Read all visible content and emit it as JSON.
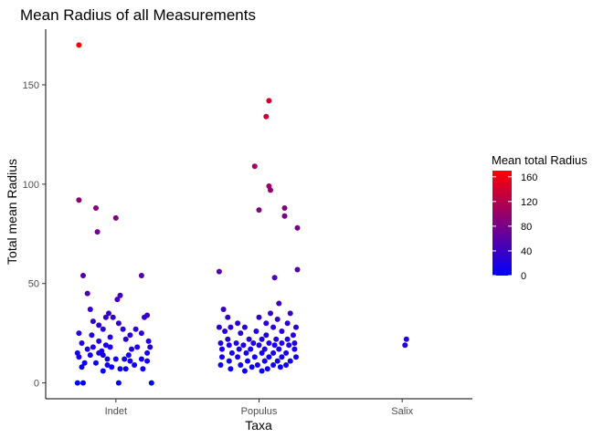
{
  "chart_data": {
    "type": "scatter",
    "title": "Mean Radius of all Measurements",
    "xlabel": "Taxa",
    "ylabel": "Total mean Radius",
    "categories": [
      "Indet",
      "Populus",
      "Salix"
    ],
    "ylim": [
      -8,
      178
    ],
    "yticks": [
      0,
      50,
      100,
      150
    ],
    "grid": false,
    "legend": {
      "title": "Mean total Radius",
      "placement": "right",
      "ticks": [
        0,
        40,
        80,
        120,
        160
      ],
      "range": [
        0,
        170
      ],
      "color_low": "#0000ff",
      "color_high": "#ff0000"
    },
    "points": [
      {
        "x": "Indet",
        "jitter": -0.26,
        "y": 170
      },
      {
        "x": "Indet",
        "jitter": -0.26,
        "y": 92
      },
      {
        "x": "Indet",
        "jitter": -0.14,
        "y": 88
      },
      {
        "x": "Indet",
        "jitter": 0.0,
        "y": 83
      },
      {
        "x": "Indet",
        "jitter": -0.13,
        "y": 76
      },
      {
        "x": "Indet",
        "jitter": -0.23,
        "y": 54
      },
      {
        "x": "Indet",
        "jitter": 0.18,
        "y": 54
      },
      {
        "x": "Indet",
        "jitter": -0.2,
        "y": 45
      },
      {
        "x": "Indet",
        "jitter": 0.03,
        "y": 44
      },
      {
        "x": "Indet",
        "jitter": 0.01,
        "y": 42
      },
      {
        "x": "Indet",
        "jitter": -0.18,
        "y": 37
      },
      {
        "x": "Indet",
        "jitter": -0.05,
        "y": 35
      },
      {
        "x": "Indet",
        "jitter": -0.07,
        "y": 33
      },
      {
        "x": "Indet",
        "jitter": -0.02,
        "y": 33
      },
      {
        "x": "Indet",
        "jitter": 0.22,
        "y": 34
      },
      {
        "x": "Indet",
        "jitter": 0.2,
        "y": 33
      },
      {
        "x": "Indet",
        "jitter": -0.16,
        "y": 31
      },
      {
        "x": "Indet",
        "jitter": -0.12,
        "y": 29
      },
      {
        "x": "Indet",
        "jitter": 0.02,
        "y": 30
      },
      {
        "x": "Indet",
        "jitter": -0.09,
        "y": 27
      },
      {
        "x": "Indet",
        "jitter": 0.05,
        "y": 27
      },
      {
        "x": "Indet",
        "jitter": 0.14,
        "y": 27
      },
      {
        "x": "Indet",
        "jitter": -0.26,
        "y": 25
      },
      {
        "x": "Indet",
        "jitter": -0.17,
        "y": 24
      },
      {
        "x": "Indet",
        "jitter": 0.1,
        "y": 24
      },
      {
        "x": "Indet",
        "jitter": -0.04,
        "y": 23
      },
      {
        "x": "Indet",
        "jitter": 0.18,
        "y": 25
      },
      {
        "x": "Indet",
        "jitter": -0.12,
        "y": 21
      },
      {
        "x": "Indet",
        "jitter": -0.24,
        "y": 20
      },
      {
        "x": "Indet",
        "jitter": 0.07,
        "y": 22
      },
      {
        "x": "Indet",
        "jitter": 0.23,
        "y": 21
      },
      {
        "x": "Indet",
        "jitter": -0.16,
        "y": 18
      },
      {
        "x": "Indet",
        "jitter": -0.07,
        "y": 19
      },
      {
        "x": "Indet",
        "jitter": -0.04,
        "y": 18
      },
      {
        "x": "Indet",
        "jitter": 0.15,
        "y": 18
      },
      {
        "x": "Indet",
        "jitter": 0.24,
        "y": 18
      },
      {
        "x": "Indet",
        "jitter": -0.2,
        "y": 17
      },
      {
        "x": "Indet",
        "jitter": 0.11,
        "y": 17
      },
      {
        "x": "Indet",
        "jitter": -0.27,
        "y": 15
      },
      {
        "x": "Indet",
        "jitter": -0.12,
        "y": 15
      },
      {
        "x": "Indet",
        "jitter": -0.09,
        "y": 14
      },
      {
        "x": "Indet",
        "jitter": 0.09,
        "y": 14
      },
      {
        "x": "Indet",
        "jitter": 0.22,
        "y": 15
      },
      {
        "x": "Indet",
        "jitter": -0.26,
        "y": 13
      },
      {
        "x": "Indet",
        "jitter": -0.06,
        "y": 12
      },
      {
        "x": "Indet",
        "jitter": 0.0,
        "y": 12
      },
      {
        "x": "Indet",
        "jitter": 0.06,
        "y": 12
      },
      {
        "x": "Indet",
        "jitter": 0.18,
        "y": 12
      },
      {
        "x": "Indet",
        "jitter": -0.22,
        "y": 10
      },
      {
        "x": "Indet",
        "jitter": -0.14,
        "y": 10
      },
      {
        "x": "Indet",
        "jitter": -0.06,
        "y": 9
      },
      {
        "x": "Indet",
        "jitter": 0.1,
        "y": 11
      },
      {
        "x": "Indet",
        "jitter": 0.22,
        "y": 11
      },
      {
        "x": "Indet",
        "jitter": -0.24,
        "y": 8
      },
      {
        "x": "Indet",
        "jitter": -0.03,
        "y": 8
      },
      {
        "x": "Indet",
        "jitter": 0.03,
        "y": 7
      },
      {
        "x": "Indet",
        "jitter": 0.07,
        "y": 7
      },
      {
        "x": "Indet",
        "jitter": 0.19,
        "y": 7
      },
      {
        "x": "Indet",
        "jitter": -0.09,
        "y": 6
      },
      {
        "x": "Indet",
        "jitter": -0.18,
        "y": 14
      },
      {
        "x": "Indet",
        "jitter": -0.1,
        "y": 16
      },
      {
        "x": "Indet",
        "jitter": 0.13,
        "y": 9
      },
      {
        "x": "Indet",
        "jitter": -0.27,
        "y": 0
      },
      {
        "x": "Indet",
        "jitter": -0.23,
        "y": 0
      },
      {
        "x": "Indet",
        "jitter": 0.02,
        "y": 0
      },
      {
        "x": "Indet",
        "jitter": 0.25,
        "y": 0
      },
      {
        "x": "Populus",
        "jitter": 0.07,
        "y": 142
      },
      {
        "x": "Populus",
        "jitter": 0.05,
        "y": 134
      },
      {
        "x": "Populus",
        "jitter": -0.03,
        "y": 109
      },
      {
        "x": "Populus",
        "jitter": 0.07,
        "y": 99
      },
      {
        "x": "Populus",
        "jitter": 0.08,
        "y": 97
      },
      {
        "x": "Populus",
        "jitter": 0.18,
        "y": 88
      },
      {
        "x": "Populus",
        "jitter": 0.0,
        "y": 87
      },
      {
        "x": "Populus",
        "jitter": 0.18,
        "y": 84
      },
      {
        "x": "Populus",
        "jitter": 0.27,
        "y": 78
      },
      {
        "x": "Populus",
        "jitter": -0.28,
        "y": 56
      },
      {
        "x": "Populus",
        "jitter": 0.27,
        "y": 57
      },
      {
        "x": "Populus",
        "jitter": 0.11,
        "y": 53
      },
      {
        "x": "Populus",
        "jitter": 0.14,
        "y": 40
      },
      {
        "x": "Populus",
        "jitter": -0.25,
        "y": 37
      },
      {
        "x": "Populus",
        "jitter": 0.08,
        "y": 35
      },
      {
        "x": "Populus",
        "jitter": 0.22,
        "y": 35
      },
      {
        "x": "Populus",
        "jitter": -0.22,
        "y": 33
      },
      {
        "x": "Populus",
        "jitter": 0.0,
        "y": 33
      },
      {
        "x": "Populus",
        "jitter": 0.13,
        "y": 32
      },
      {
        "x": "Populus",
        "jitter": -0.15,
        "y": 30
      },
      {
        "x": "Populus",
        "jitter": 0.05,
        "y": 30
      },
      {
        "x": "Populus",
        "jitter": 0.2,
        "y": 30
      },
      {
        "x": "Populus",
        "jitter": -0.28,
        "y": 28
      },
      {
        "x": "Populus",
        "jitter": -0.2,
        "y": 28
      },
      {
        "x": "Populus",
        "jitter": -0.1,
        "y": 28
      },
      {
        "x": "Populus",
        "jitter": 0.1,
        "y": 28
      },
      {
        "x": "Populus",
        "jitter": 0.26,
        "y": 28
      },
      {
        "x": "Populus",
        "jitter": -0.24,
        "y": 26
      },
      {
        "x": "Populus",
        "jitter": -0.02,
        "y": 26
      },
      {
        "x": "Populus",
        "jitter": 0.16,
        "y": 26
      },
      {
        "x": "Populus",
        "jitter": -0.13,
        "y": 25
      },
      {
        "x": "Populus",
        "jitter": 0.05,
        "y": 24
      },
      {
        "x": "Populus",
        "jitter": 0.24,
        "y": 24
      },
      {
        "x": "Populus",
        "jitter": -0.22,
        "y": 22
      },
      {
        "x": "Populus",
        "jitter": -0.07,
        "y": 22
      },
      {
        "x": "Populus",
        "jitter": 0.02,
        "y": 22
      },
      {
        "x": "Populus",
        "jitter": 0.12,
        "y": 22
      },
      {
        "x": "Populus",
        "jitter": 0.2,
        "y": 22
      },
      {
        "x": "Populus",
        "jitter": -0.27,
        "y": 20
      },
      {
        "x": "Populus",
        "jitter": -0.16,
        "y": 20
      },
      {
        "x": "Populus",
        "jitter": -0.04,
        "y": 20
      },
      {
        "x": "Populus",
        "jitter": 0.07,
        "y": 20
      },
      {
        "x": "Populus",
        "jitter": 0.16,
        "y": 20
      },
      {
        "x": "Populus",
        "jitter": 0.25,
        "y": 20
      },
      {
        "x": "Populus",
        "jitter": -0.21,
        "y": 19
      },
      {
        "x": "Populus",
        "jitter": -0.11,
        "y": 19
      },
      {
        "x": "Populus",
        "jitter": 0.0,
        "y": 19
      },
      {
        "x": "Populus",
        "jitter": 0.11,
        "y": 19
      },
      {
        "x": "Populus",
        "jitter": 0.21,
        "y": 19
      },
      {
        "x": "Populus",
        "jitter": -0.26,
        "y": 17
      },
      {
        "x": "Populus",
        "jitter": -0.14,
        "y": 17
      },
      {
        "x": "Populus",
        "jitter": -0.06,
        "y": 17
      },
      {
        "x": "Populus",
        "jitter": 0.04,
        "y": 17
      },
      {
        "x": "Populus",
        "jitter": 0.14,
        "y": 17
      },
      {
        "x": "Populus",
        "jitter": 0.25,
        "y": 17
      },
      {
        "x": "Populus",
        "jitter": -0.19,
        "y": 15
      },
      {
        "x": "Populus",
        "jitter": -0.09,
        "y": 15
      },
      {
        "x": "Populus",
        "jitter": 0.02,
        "y": 15
      },
      {
        "x": "Populus",
        "jitter": 0.1,
        "y": 15
      },
      {
        "x": "Populus",
        "jitter": 0.19,
        "y": 15
      },
      {
        "x": "Populus",
        "jitter": -0.26,
        "y": 13
      },
      {
        "x": "Populus",
        "jitter": -0.15,
        "y": 13
      },
      {
        "x": "Populus",
        "jitter": -0.03,
        "y": 13
      },
      {
        "x": "Populus",
        "jitter": 0.07,
        "y": 13
      },
      {
        "x": "Populus",
        "jitter": 0.16,
        "y": 13
      },
      {
        "x": "Populus",
        "jitter": 0.26,
        "y": 13
      },
      {
        "x": "Populus",
        "jitter": -0.21,
        "y": 11
      },
      {
        "x": "Populus",
        "jitter": -0.08,
        "y": 11
      },
      {
        "x": "Populus",
        "jitter": 0.04,
        "y": 11
      },
      {
        "x": "Populus",
        "jitter": 0.13,
        "y": 11
      },
      {
        "x": "Populus",
        "jitter": 0.22,
        "y": 11
      },
      {
        "x": "Populus",
        "jitter": -0.27,
        "y": 9
      },
      {
        "x": "Populus",
        "jitter": -0.13,
        "y": 9
      },
      {
        "x": "Populus",
        "jitter": -0.01,
        "y": 9
      },
      {
        "x": "Populus",
        "jitter": 0.1,
        "y": 9
      },
      {
        "x": "Populus",
        "jitter": 0.19,
        "y": 9
      },
      {
        "x": "Populus",
        "jitter": -0.2,
        "y": 7
      },
      {
        "x": "Populus",
        "jitter": -0.05,
        "y": 8
      },
      {
        "x": "Populus",
        "jitter": 0.06,
        "y": 7
      },
      {
        "x": "Populus",
        "jitter": 0.15,
        "y": 8
      },
      {
        "x": "Populus",
        "jitter": -0.1,
        "y": 6
      },
      {
        "x": "Populus",
        "jitter": 0.02,
        "y": 6
      },
      {
        "x": "Salix",
        "jitter": 0.03,
        "y": 22
      },
      {
        "x": "Salix",
        "jitter": 0.02,
        "y": 19
      }
    ]
  }
}
